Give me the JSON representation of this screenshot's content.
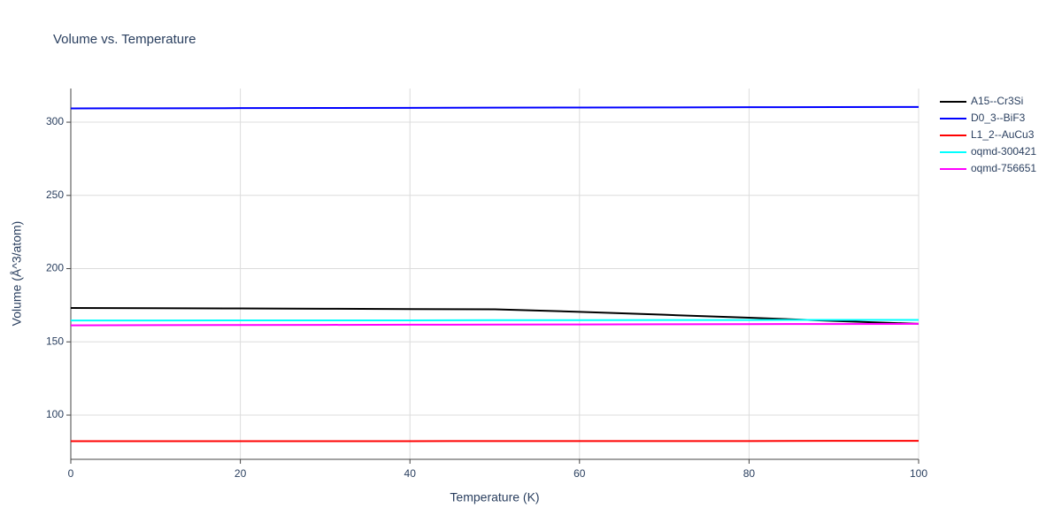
{
  "chart_data": {
    "type": "line",
    "title": "Volume vs. Temperature",
    "x_label": "Temperature (K)",
    "y_label": "Volume (Å^3/atom)",
    "x": [
      0,
      10,
      20,
      30,
      40,
      50,
      60,
      70,
      80,
      90,
      100
    ],
    "series": [
      {
        "name": "A15--Cr3Si",
        "color": "#000000",
        "values": [
          173.1,
          173.0,
          172.8,
          172.6,
          172.4,
          172.2,
          170.5,
          168.5,
          166.5,
          164.3,
          162.3
        ]
      },
      {
        "name": "D0_3--BiF3",
        "color": "#0000ff",
        "values": [
          309.4,
          309.5,
          309.6,
          309.7,
          309.8,
          309.9,
          310.0,
          310.1,
          310.2,
          310.3,
          310.4
        ]
      },
      {
        "name": "L1_2--AuCu3",
        "color": "#ff0000",
        "values": [
          82.2,
          82.2,
          82.2,
          82.2,
          82.2,
          82.3,
          82.3,
          82.3,
          82.3,
          82.4,
          82.4
        ]
      },
      {
        "name": "oqmd-300421",
        "color": "#00ffff",
        "values": [
          164.6,
          164.6,
          164.7,
          164.7,
          164.7,
          164.8,
          164.8,
          164.9,
          164.9,
          165.0,
          165.0
        ]
      },
      {
        "name": "oqmd-756651",
        "color": "#ff00ff",
        "values": [
          161.3,
          161.4,
          161.5,
          161.6,
          161.7,
          161.8,
          161.9,
          162.0,
          162.1,
          162.2,
          162.3
        ]
      }
    ],
    "xlim": [
      0,
      100
    ],
    "xticks": [
      0,
      20,
      40,
      60,
      80,
      100
    ],
    "ylim": [
      69.8,
      323
    ],
    "yticks": [
      100,
      150,
      200,
      250,
      300
    ],
    "grid": true,
    "legend": "right"
  }
}
